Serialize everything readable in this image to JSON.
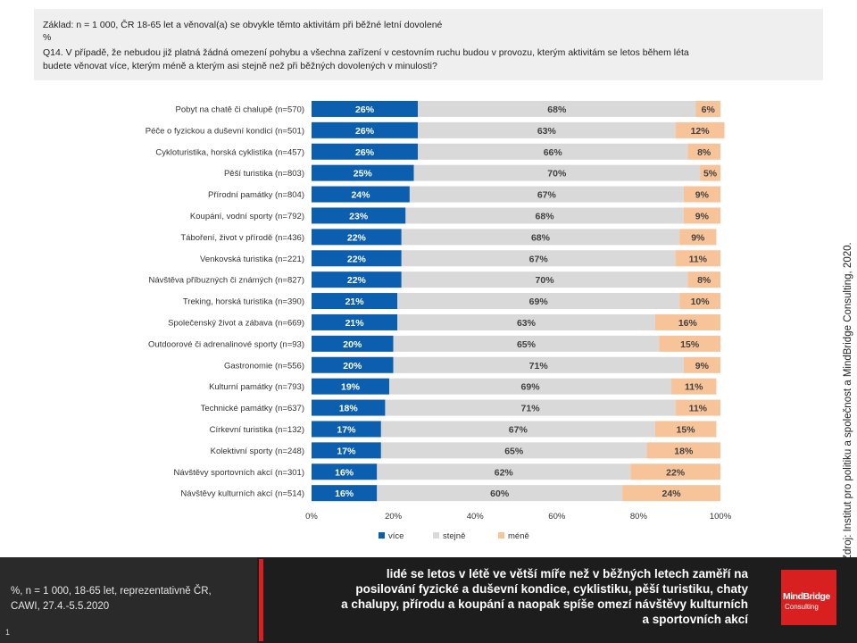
{
  "header": {
    "lines": [
      "Základ: n = 1 000, ČR 18-65 let a věnoval(a) se obvykle těmto  aktivitám při běžné letní dovolené",
      "%",
      "Q14. V případě, že nebudou již platná žádná omezení pohybu a všechna zařízení v cestovním ruchu budou v provozu, kterým aktivitám se letos během  léta",
      "budete  věnovat více,  kterým méně  a kterým asi stejně než při běžných dovolených v minulosti?"
    ]
  },
  "chart_data": {
    "type": "bar",
    "orientation": "horizontal",
    "stacked": true,
    "categories": [
      "Pobyt na chatě či chalupě (n=570)",
      "Péče o fyzickou a duševní kondici (n=501)",
      "Cykloturistika, horská cyklistika (n=457)",
      "Pěší turistika (n=803)",
      "Přírodní památky (n=804)",
      "Koupání, vodní sporty (n=792)",
      "Táboření, život v přírodě (n=436)",
      "Venkovská turistika (n=221)",
      "Návštěva příbuzných či známých (n=827)",
      "Treking, horská turistika (n=390)",
      "Společenský život a zábava (n=669)",
      "Outdoorové či adrenalinové sporty (n=93)",
      "Gastronomie (n=556)",
      "Kulturní památky (n=793)",
      "Technické památky (n=637)",
      "Církevní turistika (n=132)",
      "Kolektivní sporty (n=248)",
      "Návštěvy sportovních akcí (n=301)",
      "Návštěvy kulturních akcí (n=514)"
    ],
    "series": [
      {
        "name": "více",
        "color": "#0b5fae",
        "label_color": "#ffffff",
        "values": [
          26,
          26,
          26,
          25,
          24,
          23,
          22,
          22,
          22,
          21,
          21,
          20,
          20,
          19,
          18,
          17,
          17,
          16,
          16
        ],
        "labels": [
          "26%",
          "26%",
          "26%",
          "25%",
          "24%",
          "23%",
          "22%",
          "22%",
          "22%",
          "21%",
          "21%",
          "20%",
          "20%",
          "19%",
          "18%",
          "17%",
          "17%",
          "16%",
          "16%"
        ]
      },
      {
        "name": "stejně",
        "color": "#d9d9d9",
        "label_color": "#404040",
        "values": [
          68,
          63,
          66,
          70,
          67,
          68,
          68,
          67,
          70,
          69,
          63,
          65,
          71,
          69,
          71,
          67,
          65,
          62,
          60
        ],
        "labels": [
          "68%",
          "63%",
          "66%",
          "70%",
          "67%",
          "68%",
          "68%",
          "67%",
          "70%",
          "69%",
          "63%",
          "65%",
          "71%",
          "69%",
          "71%",
          "67%",
          "65%",
          "62%",
          "60%"
        ]
      },
      {
        "name": "méně",
        "color": "#f7c49a",
        "label_color": "#404040",
        "values": [
          6,
          12,
          8,
          5,
          9,
          9,
          9,
          11,
          8,
          10,
          16,
          15,
          9,
          11,
          11,
          15,
          18,
          22,
          24
        ],
        "labels": [
          "6%",
          "12%",
          "8%",
          "5%",
          "9%",
          "9%",
          "9%",
          "11%",
          "8%",
          "10%",
          "16%",
          "15%",
          "9%",
          "11%",
          "11%",
          "15%",
          "18%",
          "22%",
          "24%"
        ]
      }
    ],
    "xlim": [
      0,
      100
    ],
    "x_ticks": [
      "0%",
      "20%",
      "40%",
      "60%",
      "80%",
      "100%"
    ],
    "legend_position": "bottom",
    "gridlines": false
  },
  "source": "Zdroj: Institut pro politiku a společnost a MindBridge Consulting, 2020.",
  "footer": {
    "note_lines": [
      "%, n = 1 000, 18-65  let, reprezentativně ČR,",
      "CAWI, 27.4.-5.5.2020"
    ],
    "page_number": "1",
    "conclusion_lines": [
      "lidé se letos v létě ve větší míře než v běžných letech zaměří na",
      "posilování fyzické a duševní kondice, cyklistiku, pěší turistiku, chaty",
      "a chalupy, přírodu a koupání a  naopak  spíše omezí návštěvy kulturních",
      "a sportovních akcí"
    ],
    "logo": {
      "line1": "MindBridge",
      "line2": "Consulting"
    }
  }
}
